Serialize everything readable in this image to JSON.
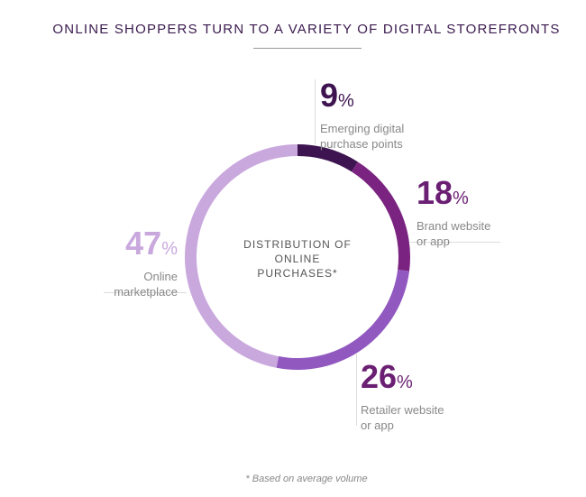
{
  "chart_data": {
    "type": "pie",
    "title": "ONLINE SHOPPERS TURN TO A VARIETY OF DIGITAL STOREFRONTS",
    "center_label": "DISTRIBUTION OF ONLINE PURCHASES*",
    "footnote": "* Based on average volume",
    "slices": [
      {
        "label": "Emerging digital purchase points",
        "value": 9,
        "display": "9",
        "color": "#3d1450"
      },
      {
        "label": "Brand website or app",
        "value": 18,
        "display": "18",
        "color": "#7a2380"
      },
      {
        "label": "Retailer website or app",
        "value": 26,
        "display": "26",
        "color": "#9158c0"
      },
      {
        "label": "Online marketplace",
        "value": 47,
        "display": "47",
        "color": "#c9a8dd"
      }
    ],
    "percent_sign": "%"
  }
}
